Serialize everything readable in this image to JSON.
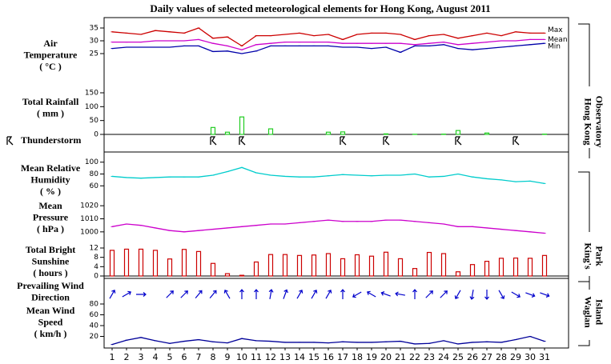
{
  "title": "Daily values of selected meteorological elements for Hong Kong, August 2011",
  "stations": [
    [
      "Hong Kong",
      "Observatory"
    ],
    [
      "King's",
      "Park"
    ],
    [
      "Waglan",
      "Island"
    ]
  ],
  "chart_data": [
    {
      "type": "line",
      "ylabel": [
        "Air",
        "Temperature",
        "( °C )"
      ],
      "ylim": [
        22.5,
        37.5
      ],
      "yticks": [
        25,
        30,
        35
      ],
      "series": [
        {
          "name": "Max",
          "color": "#cc0000",
          "values": [
            33.5,
            33,
            32.5,
            34,
            33.5,
            33,
            35,
            31,
            31.5,
            28,
            32,
            32,
            32.5,
            33,
            32,
            32.5,
            30.5,
            32.5,
            33,
            33,
            32.5,
            30.5,
            32,
            32.5,
            31,
            32,
            33,
            32,
            33.5,
            33,
            33
          ]
        },
        {
          "name": "Mean",
          "color": "#cc00cc",
          "values": [
            29.5,
            29.5,
            29.5,
            30,
            30,
            30,
            30.5,
            29,
            28,
            26.5,
            28.5,
            29,
            29.5,
            29.5,
            29.5,
            29.5,
            29,
            29,
            29,
            29,
            29,
            28.5,
            29,
            29.5,
            28.5,
            29,
            29.5,
            30,
            30,
            30.5,
            30.5
          ]
        },
        {
          "name": "Min",
          "color": "#0000aa",
          "values": [
            27,
            27.5,
            27.5,
            27.5,
            27.5,
            28,
            28,
            25.8,
            26,
            25,
            26,
            28,
            28,
            28,
            28,
            28,
            27.5,
            27.5,
            27,
            27.5,
            25.5,
            28,
            28,
            28.5,
            27,
            26.5,
            27,
            27.5,
            28,
            28.5,
            29
          ]
        }
      ]
    },
    {
      "type": "bar",
      "ylabel": [
        "Total Rainfall",
        "( mm )"
      ],
      "ylim": [
        0,
        150
      ],
      "yticks": [
        0,
        50,
        100,
        150
      ],
      "color": "#22cc22",
      "values": [
        0,
        0,
        0,
        0,
        0,
        0,
        0,
        25,
        8,
        63,
        0,
        20,
        0,
        0,
        0,
        8,
        9,
        0,
        0,
        2,
        0,
        0.5,
        0,
        1,
        14,
        0,
        5,
        0,
        0,
        0,
        1
      ]
    },
    {
      "type": "events",
      "label": "Thunderstorm",
      "days": [
        8,
        10,
        17,
        20,
        25,
        29
      ]
    },
    {
      "type": "line",
      "ylabel": [
        "Mean Relative",
        "Humidity",
        "( % )"
      ],
      "ylim": [
        55,
        105
      ],
      "yticks": [
        60,
        80,
        100
      ],
      "series": [
        {
          "color": "#00cccc",
          "values": [
            76,
            74,
            73,
            74,
            75,
            75,
            75,
            78,
            84,
            91,
            82,
            78,
            76,
            75,
            75,
            77,
            79,
            78,
            77,
            78,
            78,
            80,
            75,
            76,
            80,
            75,
            72,
            70,
            67,
            68,
            64
          ]
        }
      ]
    },
    {
      "type": "line",
      "ylabel": [
        "Mean",
        "Pressure",
        "( hPa )"
      ],
      "ylim": [
        995,
        1025
      ],
      "yticks": [
        1000,
        1010,
        1020
      ],
      "series": [
        {
          "color": "#cc00cc",
          "values": [
            1004,
            1006,
            1005,
            1003,
            1001,
            1000,
            1001,
            1002,
            1003,
            1004,
            1005,
            1006,
            1006,
            1007,
            1008,
            1009,
            1008,
            1008,
            1008,
            1009,
            1009,
            1008,
            1007,
            1006,
            1004,
            1004,
            1003,
            1002,
            1001,
            1000,
            999
          ]
        }
      ]
    },
    {
      "type": "bar",
      "ylabel": [
        "Total Bright",
        "Sunshine",
        "( hours )"
      ],
      "ylim": [
        0,
        12
      ],
      "yticks": [
        0,
        4,
        8,
        12
      ],
      "color": "#cc0000",
      "values": [
        11,
        11.5,
        11.5,
        11,
        7.3,
        11.4,
        10.5,
        5.4,
        1,
        0.3,
        6,
        9.2,
        9.2,
        8.8,
        9,
        9.6,
        7.4,
        9.1,
        8.5,
        10.2,
        7.4,
        3.2,
        10.1,
        9.6,
        1.8,
        4.9,
        6.3,
        7.6,
        7.7,
        7.6,
        8.8
      ]
    },
    {
      "type": "arrows",
      "ylabel": [
        "Prevailing Wind",
        "Direction"
      ],
      "color": "#0000cc",
      "values": [
        210,
        240,
        270,
        null,
        225,
        225,
        220,
        220,
        150,
        180,
        180,
        190,
        200,
        210,
        210,
        210,
        180,
        60,
        120,
        110,
        100,
        180,
        225,
        225,
        30,
        10,
        0,
        330,
        300,
        290,
        290
      ]
    },
    {
      "type": "line",
      "ylabel": [
        "Mean Wind",
        "Speed",
        "( km/h )"
      ],
      "ylim": [
        0,
        80
      ],
      "yticks": [
        20,
        40,
        60,
        80
      ],
      "categories": [
        "1",
        "2",
        "3",
        "4",
        "5",
        "6",
        "7",
        "8",
        "9",
        "10",
        "11",
        "12",
        "13",
        "14",
        "15",
        "16",
        "17",
        "18",
        "19",
        "20",
        "21",
        "22",
        "23",
        "24",
        "25",
        "26",
        "27",
        "28",
        "29",
        "30",
        "31"
      ],
      "series": [
        {
          "color": "#000099",
          "values": [
            5,
            13,
            18,
            12,
            7,
            11,
            14,
            10,
            8,
            16,
            12,
            11,
            9,
            9,
            9,
            8,
            10,
            9,
            9,
            10,
            11,
            6,
            7,
            12,
            6,
            9,
            10,
            9,
            14,
            20,
            11
          ]
        }
      ]
    }
  ]
}
